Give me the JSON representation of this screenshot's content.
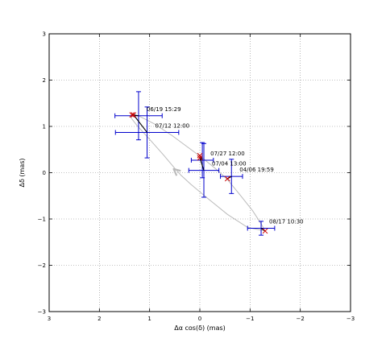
{
  "chart_data": {
    "type": "scatter",
    "xlabel": "Δα cos(δ) (mas)",
    "ylabel": "Δδ (mas)",
    "xlim": [
      3,
      -3
    ],
    "ylim": [
      -3,
      3
    ],
    "xticks": [
      3,
      2,
      1,
      0,
      -1,
      -2,
      -3
    ],
    "yticks": [
      3,
      2,
      1,
      0,
      -1,
      -2,
      -3
    ],
    "xtick_labels": [
      "3",
      "2",
      "1",
      "0",
      "−1",
      "−2",
      "−3"
    ],
    "ytick_labels": [
      "3",
      "2",
      "1",
      "0",
      "−1",
      "−2",
      "−3"
    ],
    "grid": true,
    "observed_color": "#0000cc",
    "model_color": "#cc0000",
    "link_color": "#000000",
    "orbit_color": "#bbbbbb",
    "observations": [
      {
        "label": "06/19 15:29",
        "x": 1.22,
        "y": 1.23,
        "xerr": 0.47,
        "yerr": 0.52,
        "model": {
          "x": 1.35,
          "y": 1.25
        }
      },
      {
        "label": "07/12 12:00",
        "x": 1.05,
        "y": 0.87,
        "xerr": 0.63,
        "yerr": 0.55,
        "model": {
          "x": 1.32,
          "y": 1.25
        }
      },
      {
        "label": "07/27 12:00",
        "x": -0.05,
        "y": 0.27,
        "xerr": 0.22,
        "yerr": 0.38,
        "model": {
          "x": 0.0,
          "y": 0.37
        }
      },
      {
        "label": "07/04 13:00",
        "x": -0.08,
        "y": 0.05,
        "xerr": 0.3,
        "yerr": 0.58,
        "model": {
          "x": 0.0,
          "y": 0.32
        }
      },
      {
        "label": "04/06 19:59",
        "x": -0.63,
        "y": -0.08,
        "xerr": 0.22,
        "yerr": 0.37,
        "model": {
          "x": -0.55,
          "y": -0.13
        }
      },
      {
        "label": "08/17 10:30",
        "x": -1.22,
        "y": -1.2,
        "xerr": 0.27,
        "yerr": 0.15,
        "model": {
          "x": -1.3,
          "y": -1.26
        }
      }
    ],
    "orbit": {
      "points": [
        [
          -1.3,
          -1.26
        ],
        [
          -1.22,
          -1.1
        ],
        [
          -1.05,
          -0.82
        ],
        [
          -0.8,
          -0.48
        ],
        [
          -0.55,
          -0.15
        ],
        [
          -0.3,
          0.1
        ],
        [
          -0.05,
          0.32
        ],
        [
          0.2,
          0.52
        ],
        [
          0.55,
          0.8
        ],
        [
          0.9,
          1.05
        ],
        [
          1.2,
          1.22
        ],
        [
          1.36,
          1.28
        ],
        [
          1.38,
          1.2
        ],
        [
          1.25,
          1.02
        ],
        [
          1.0,
          0.72
        ],
        [
          0.72,
          0.38
        ],
        [
          0.52,
          0.12
        ],
        [
          0.38,
          -0.05
        ],
        [
          0.18,
          -0.25
        ],
        [
          -0.15,
          -0.55
        ],
        [
          -0.55,
          -0.9
        ],
        [
          -0.95,
          -1.18
        ],
        [
          -1.3,
          -1.26
        ]
      ],
      "arrow": {
        "from": [
          0.38,
          -0.05
        ],
        "to": [
          0.52,
          0.08
        ]
      }
    }
  }
}
